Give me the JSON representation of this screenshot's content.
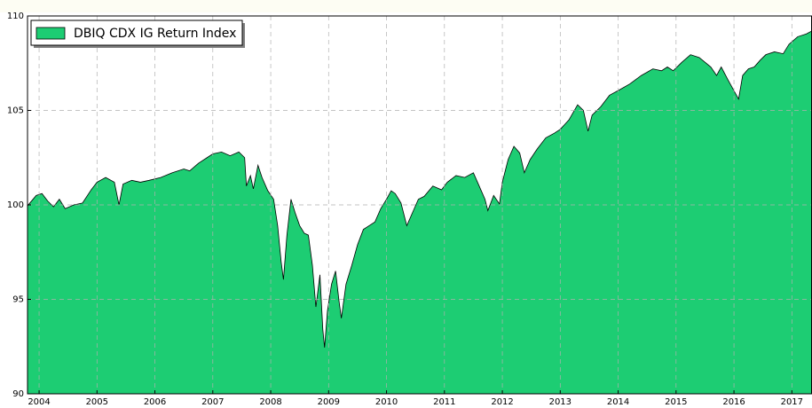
{
  "chart_data": {
    "type": "area",
    "x": [
      2003.8,
      2003.95,
      2004.05,
      2004.15,
      2004.25,
      2004.35,
      2004.45,
      2004.6,
      2004.75,
      2004.9,
      2005.0,
      2005.15,
      2005.3,
      2005.38,
      2005.45,
      2005.6,
      2005.75,
      2005.9,
      2006.1,
      2006.3,
      2006.5,
      2006.6,
      2006.75,
      2006.9,
      2007.0,
      2007.15,
      2007.3,
      2007.45,
      2007.55,
      2007.58,
      2007.65,
      2007.7,
      2007.78,
      2007.85,
      2007.95,
      2008.05,
      2008.12,
      2008.18,
      2008.22,
      2008.28,
      2008.35,
      2008.42,
      2008.5,
      2008.58,
      2008.65,
      2008.72,
      2008.78,
      2008.85,
      2008.9,
      2008.93,
      2008.98,
      2009.05,
      2009.12,
      2009.18,
      2009.22,
      2009.3,
      2009.4,
      2009.5,
      2009.6,
      2009.7,
      2009.8,
      2009.9,
      2010.0,
      2010.08,
      2010.15,
      2010.25,
      2010.35,
      2010.45,
      2010.55,
      2010.65,
      2010.8,
      2010.95,
      2011.05,
      2011.2,
      2011.35,
      2011.5,
      2011.6,
      2011.7,
      2011.75,
      2011.85,
      2011.95,
      2012.0,
      2012.1,
      2012.2,
      2012.3,
      2012.38,
      2012.48,
      2012.6,
      2012.75,
      2012.9,
      2013.0,
      2013.15,
      2013.3,
      2013.4,
      2013.48,
      2013.55,
      2013.7,
      2013.85,
      2014.0,
      2014.2,
      2014.4,
      2014.6,
      2014.75,
      2014.85,
      2014.95,
      2015.1,
      2015.25,
      2015.4,
      2015.5,
      2015.6,
      2015.7,
      2015.78,
      2015.9,
      2016.08,
      2016.15,
      2016.25,
      2016.35,
      2016.45,
      2016.55,
      2016.7,
      2016.85,
      2016.95,
      2017.1,
      2017.25,
      2017.34
    ],
    "series": [
      {
        "name": "DBIQ CDX IG Return Index",
        "color": "#1dcd73",
        "values": [
          99.95,
          100.5,
          100.6,
          100.2,
          99.9,
          100.3,
          99.8,
          100.0,
          100.1,
          100.8,
          101.2,
          101.45,
          101.2,
          100.0,
          101.1,
          101.3,
          101.2,
          101.3,
          101.45,
          101.7,
          101.9,
          101.8,
          102.2,
          102.5,
          102.7,
          102.8,
          102.6,
          102.8,
          102.5,
          101.0,
          101.55,
          100.85,
          102.1,
          101.45,
          100.75,
          100.3,
          98.9,
          97.0,
          96.05,
          98.4,
          100.3,
          99.6,
          98.9,
          98.5,
          98.4,
          96.8,
          94.6,
          96.3,
          93.4,
          92.45,
          94.4,
          95.8,
          96.5,
          94.9,
          94.0,
          95.8,
          96.8,
          97.9,
          98.7,
          98.9,
          99.1,
          99.8,
          100.3,
          100.75,
          100.6,
          100.1,
          98.9,
          99.6,
          100.3,
          100.45,
          101.0,
          100.8,
          101.2,
          101.55,
          101.45,
          101.7,
          101.0,
          100.3,
          99.7,
          100.5,
          100.05,
          101.2,
          102.4,
          103.1,
          102.75,
          101.7,
          102.4,
          102.95,
          103.55,
          103.8,
          104.0,
          104.5,
          105.3,
          105.0,
          103.9,
          104.75,
          105.2,
          105.8,
          106.05,
          106.4,
          106.85,
          107.2,
          107.1,
          107.3,
          107.1,
          107.55,
          107.95,
          107.8,
          107.55,
          107.3,
          106.85,
          107.3,
          106.6,
          105.6,
          106.85,
          107.2,
          107.3,
          107.65,
          107.95,
          108.1,
          108.0,
          108.5,
          108.9,
          109.05,
          109.2
        ]
      }
    ],
    "xlim": [
      2003.8,
      2017.34
    ],
    "xticks": [
      2004,
      2005,
      2006,
      2007,
      2008,
      2009,
      2010,
      2011,
      2012,
      2013,
      2014,
      2015,
      2016,
      2017
    ],
    "ylim": [
      90,
      110
    ],
    "yticks": [
      90,
      95,
      100,
      105,
      110
    ],
    "grid": true,
    "legend": "upper left"
  }
}
